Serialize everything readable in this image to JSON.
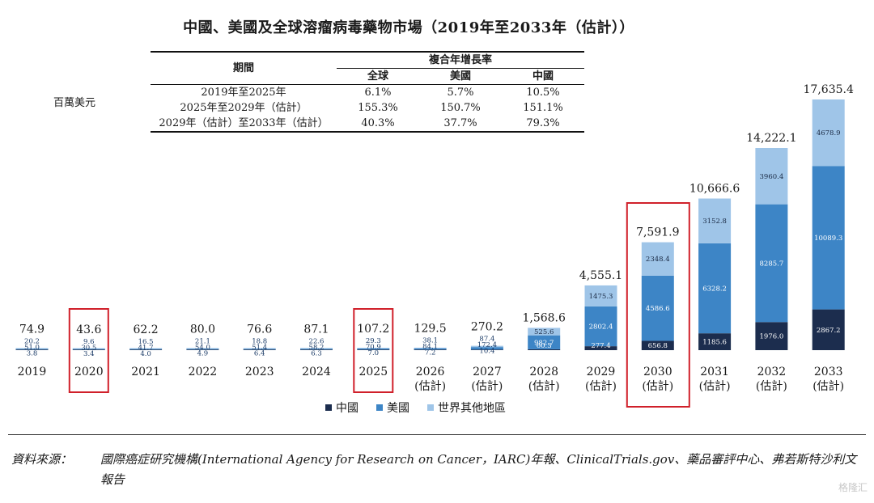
{
  "title": "中國、美國及全球溶瘤病毒藥物市場（2019年至2033年（估計））",
  "unit": "百萬美元",
  "cagr_table": {
    "period_header": "期間",
    "cagr_header": "複合年增長率",
    "columns": [
      "全球",
      "美國",
      "中國"
    ],
    "rows": [
      {
        "period": "2019年至2025年",
        "values": [
          "6.1%",
          "5.7%",
          "10.5%"
        ]
      },
      {
        "period": "2025年至2029年（估計）",
        "values": [
          "155.3%",
          "150.7%",
          "151.1%"
        ]
      },
      {
        "period": "2029年（估計）至2033年（估計）",
        "values": [
          "40.3%",
          "37.7%",
          "79.3%"
        ]
      }
    ]
  },
  "chart_data": {
    "type": "bar",
    "stacked": true,
    "categories": [
      "2019",
      "2020",
      "2021",
      "2022",
      "2023",
      "2024",
      "2025",
      "2026",
      "2027",
      "2028",
      "2029",
      "2030",
      "2031",
      "2032",
      "2033"
    ],
    "category_sublabels": [
      "",
      "",
      "",
      "",
      "",
      "",
      "",
      "(估計)",
      "(估計)",
      "(估計)",
      "(估計)",
      "(估計)",
      "(估計)",
      "(估計)",
      "(估計)"
    ],
    "series": [
      {
        "name": "中國",
        "color": "#1c2d4e",
        "values": [
          3.8,
          3.4,
          4.0,
          4.9,
          6.4,
          6.3,
          7.0,
          7.2,
          10.4,
          60.3,
          277.4,
          656.8,
          1185.6,
          1976.0,
          2867.2
        ]
      },
      {
        "name": "美國",
        "color": "#3d85c6",
        "values": [
          51.0,
          30.5,
          41.7,
          54.0,
          51.4,
          58.2,
          70.9,
          84.1,
          172.4,
          982.7,
          2802.4,
          4586.6,
          6328.2,
          8285.7,
          10089.3
        ]
      },
      {
        "name": "世界其他地區",
        "color": "#9fc5e8",
        "values": [
          20.2,
          9.6,
          16.5,
          21.1,
          18.8,
          22.6,
          29.3,
          38.1,
          87.4,
          525.6,
          1475.3,
          2348.4,
          3152.8,
          3960.4,
          4678.9
        ]
      }
    ],
    "totals": [
      "74.9",
      "43.6",
      "62.2",
      "80.0",
      "76.6",
      "87.1",
      "107.2",
      "129.5",
      "270.2",
      "1,568.6",
      "4,555.1",
      "7,591.9",
      "10,666.6",
      "14,222.1",
      "17,635.4"
    ],
    "segment_labels": [
      [
        "3.8",
        "51.0",
        "20.2"
      ],
      [
        "3.4",
        "30.5",
        "9.6"
      ],
      [
        "4.0",
        "41.7",
        "16.5"
      ],
      [
        "4.9",
        "54.0",
        "21.1"
      ],
      [
        "6.4",
        "51.4",
        "18.8"
      ],
      [
        "6.3",
        "58.2",
        "22.6"
      ],
      [
        "7.0",
        "70.9",
        "29.3"
      ],
      [
        "7.2",
        "84.1",
        "38.1"
      ],
      [
        "10.4",
        "172.4",
        "87.4"
      ],
      [
        "60.3",
        "982.7",
        "525.6"
      ],
      [
        "277.4",
        "2802.4",
        "1475.3"
      ],
      [
        "656.8",
        "4586.6",
        "2348.4"
      ],
      [
        "1185.6",
        "6328.2",
        "3152.8"
      ],
      [
        "1976.0",
        "8285.7",
        "3960.4"
      ],
      [
        "2867.2",
        "10089.3",
        "4678.9"
      ]
    ],
    "highlighted_categories": [
      "2020",
      "2025",
      "2030"
    ],
    "highlight_color": "#d0202a",
    "legend_position": "bottom"
  },
  "source": {
    "label": "資料來源：",
    "text": "國際癌症研究機構(International Agency for Research on Cancer，IARC)年報、ClinicalTrials.gov、藥品審評中心、弗若斯特沙利文報告"
  },
  "watermark": "格隆汇"
}
